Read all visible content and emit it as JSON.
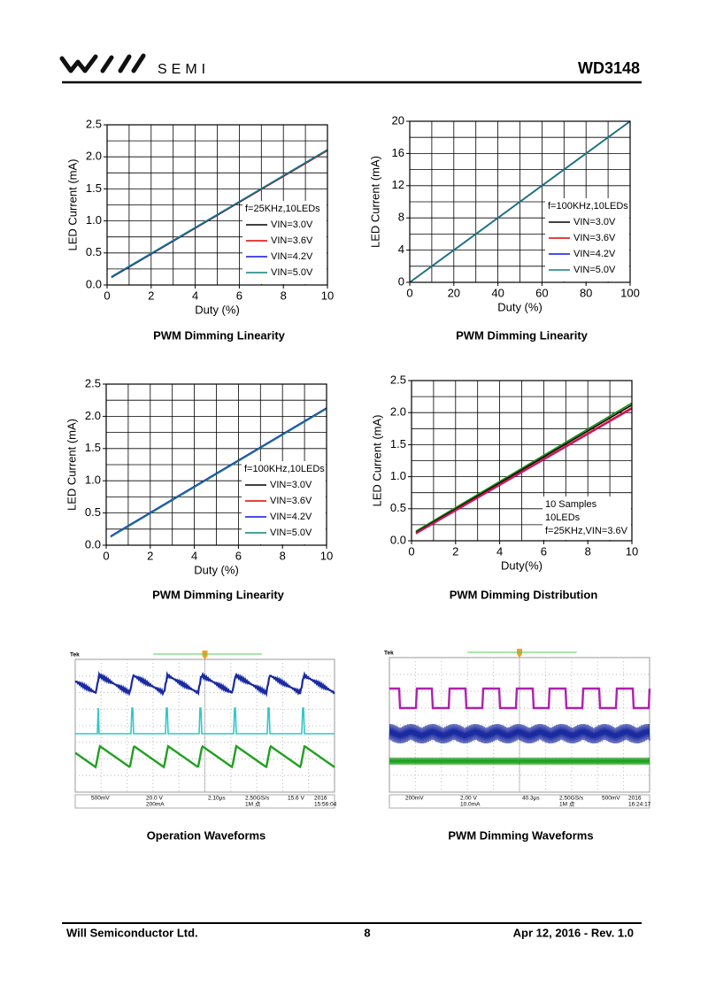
{
  "header": {
    "brand": "SEMI",
    "part": "WD3148"
  },
  "chart_data": [
    {
      "type": "line",
      "caption": "PWM Dimming Linearity",
      "xlabel": "Duty (%)",
      "ylabel": "LED Current (mA)",
      "xlim": [
        0,
        10
      ],
      "ylim": [
        0,
        2.5
      ],
      "xticks": [
        0,
        2,
        4,
        6,
        8,
        10
      ],
      "yticks": [
        {
          "value": 0,
          "label": "0.0"
        },
        0.5,
        {
          "value": 1,
          "label": "1.0"
        },
        1.5,
        {
          "value": 2,
          "label": "2.0"
        },
        2.5
      ],
      "grid": true,
      "grid_divisions": [
        10,
        10
      ],
      "legend": "lower right",
      "legend_title": "f=25KHz,10LEDs",
      "x": [
        0.2,
        10
      ],
      "series": [
        {
          "name": "VIN=3.0V",
          "color": "#000000",
          "values": [
            0.12,
            2.1
          ]
        },
        {
          "name": "VIN=3.6V",
          "color": "#e00000",
          "values": [
            0.12,
            2.1
          ]
        },
        {
          "name": "VIN=4.2V",
          "color": "#1010e0",
          "values": [
            0.12,
            2.11
          ]
        },
        {
          "name": "VIN=5.0V",
          "color": "#108080",
          "values": [
            0.13,
            2.11
          ]
        }
      ]
    },
    {
      "type": "line",
      "caption": "PWM Dimming Linearity",
      "xlabel": "Duty (%)",
      "ylabel": "LED Current (mA)",
      "xlim": [
        0,
        100
      ],
      "ylim": [
        0,
        20
      ],
      "xticks": [
        0,
        20,
        40,
        60,
        80,
        100
      ],
      "yticks": [
        0,
        4,
        8,
        12,
        16,
        20
      ],
      "grid": true,
      "grid_divisions": [
        10,
        10
      ],
      "legend": "lower right",
      "legend_title": "f=100KHz,10LEDs",
      "x": [
        0,
        100
      ],
      "series": [
        {
          "name": "VIN=3.0V",
          "color": "#000000",
          "values": [
            0,
            20
          ]
        },
        {
          "name": "VIN=3.6V",
          "color": "#e00000",
          "values": [
            0,
            20
          ]
        },
        {
          "name": "VIN=4.2V",
          "color": "#1010e0",
          "values": [
            0,
            20
          ]
        },
        {
          "name": "VIN=5.0V",
          "color": "#108080",
          "values": [
            0,
            20
          ]
        }
      ]
    },
    {
      "type": "line",
      "caption": "PWM Dimming Linearity",
      "xlabel": "Duty (%)",
      "ylabel": "LED Current (mA)",
      "xlim": [
        0,
        10
      ],
      "ylim": [
        0,
        2.5
      ],
      "xticks": [
        0,
        2,
        4,
        6,
        8,
        10
      ],
      "yticks": [
        {
          "value": 0,
          "label": "0.0"
        },
        0.5,
        {
          "value": 1,
          "label": "1.0"
        },
        1.5,
        {
          "value": 2,
          "label": "2.0"
        },
        2.5
      ],
      "grid": true,
      "grid_divisions": [
        10,
        10
      ],
      "legend": "lower right",
      "legend_title": "f=100KHz,10LEDs",
      "x": [
        0.2,
        10
      ],
      "series": [
        {
          "name": "VIN=3.0V",
          "color": "#000000",
          "values": [
            0.13,
            2.12
          ]
        },
        {
          "name": "VIN=3.6V",
          "color": "#e00000",
          "values": [
            0.13,
            2.12
          ]
        },
        {
          "name": "VIN=4.2V",
          "color": "#1010e0",
          "values": [
            0.14,
            2.13
          ]
        },
        {
          "name": "VIN=5.0V",
          "color": "#108080",
          "values": [
            0.13,
            2.12
          ]
        }
      ]
    },
    {
      "type": "line",
      "caption": "PWM Dimming Distribution",
      "xlabel": "Duty(%)",
      "ylabel": "LED Current (mA)",
      "xlim": [
        0,
        10
      ],
      "ylim": [
        0,
        2.5
      ],
      "xticks": [
        0,
        2,
        4,
        6,
        8,
        10
      ],
      "yticks": [
        {
          "value": 0,
          "label": "0.0"
        },
        0.5,
        {
          "value": 1,
          "label": "1.0"
        },
        1.5,
        {
          "value": 2,
          "label": "2.0"
        },
        2.5
      ],
      "grid": true,
      "grid_divisions": [
        10,
        10
      ],
      "legend": "lower right",
      "annotations": [
        "10 Samples",
        "10LEDs",
        "f=25KHz,VIN=3.6V"
      ],
      "x": [
        0.2,
        10
      ],
      "series": [
        {
          "color": "#109010",
          "values": [
            0.15,
            2.15
          ]
        },
        {
          "color": "#000000",
          "values": [
            0.13,
            2.12
          ]
        },
        {
          "color": "#e02020",
          "values": [
            0.12,
            2.08
          ]
        },
        {
          "color": "#c0107a",
          "values": [
            0.11,
            2.06
          ]
        }
      ]
    }
  ],
  "scopes": [
    {
      "caption": "Operation Waveforms",
      "brand": "Tek",
      "status": [
        "500mV",
        "20.0 V",
        "200mA",
        "2.10µs",
        "2.50GS/s",
        "1M 点",
        "15.6 V",
        "2016",
        "15:56:04"
      ]
    },
    {
      "caption": "PWM Dimming Waveforms",
      "brand": "Tek",
      "status": [
        "200mV",
        "2.00 V",
        "10.0mA",
        "40.3µs",
        "2.50GS/s",
        "1M 点",
        "500mV",
        "2016",
        "16:24:17"
      ]
    }
  ],
  "footer": {
    "company": "Will Semiconductor Ltd.",
    "page": "8",
    "date": "Apr 12, 2016 - Rev. 1.0"
  }
}
